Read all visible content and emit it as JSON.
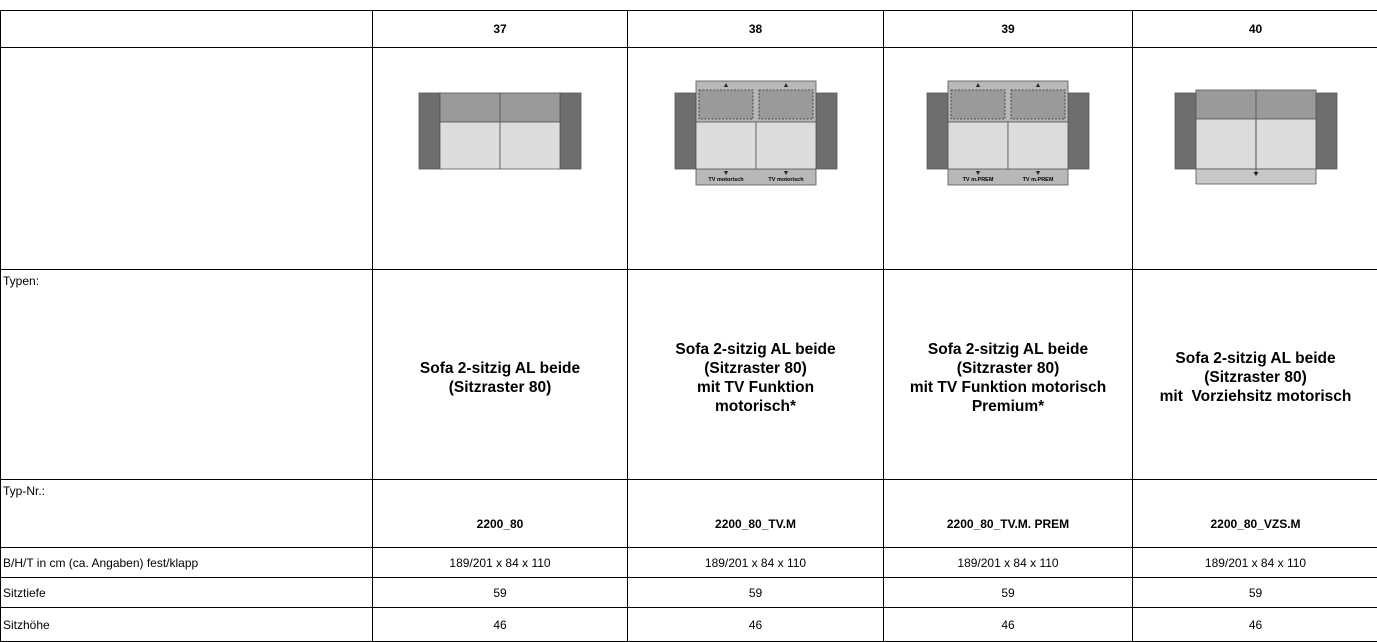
{
  "table": {
    "row_labels": {
      "types": "Typen:",
      "type_no": "Typ-Nr.:",
      "dimensions": "B/H/T in cm (ca. Angaben) fest/klapp",
      "seat_depth": "Sitztiefe",
      "seat_height": "Sitzhöhe"
    },
    "columns": [
      {
        "number": "37",
        "type_lines": [
          "Sofa 2-sitzig AL beide",
          "(Sitzraster 80)"
        ],
        "type_no": "2200_80",
        "dimensions": "189/201 x 84 x 110",
        "seat_depth": 59,
        "seat_height": 46
      },
      {
        "number": "38",
        "diagram_labels": [
          "TV motorisch",
          "TV motorisch"
        ],
        "type_lines": [
          "Sofa 2-sitzig AL beide",
          "(Sitzraster 80)",
          "mit TV Funktion",
          "motorisch*"
        ],
        "type_no": "2200_80_TV.M",
        "dimensions": "189/201 x 84 x 110",
        "seat_depth": 59,
        "seat_height": 46
      },
      {
        "number": "39",
        "diagram_labels": [
          "TV m.PREM",
          "TV m.PREM"
        ],
        "type_lines": [
          "Sofa 2-sitzig AL beide",
          "(Sitzraster 80)",
          "mit TV Funktion motorisch",
          "Premium*"
        ],
        "type_no": "2200_80_TV.M. PREM",
        "dimensions": "189/201 x 84 x 110",
        "seat_depth": 59,
        "seat_height": 46
      },
      {
        "number": "40",
        "type_lines": [
          "Sofa 2-sitzig AL beide",
          "(Sitzraster 80)",
          "mit  Vorziehsitz motorisch"
        ],
        "type_no": "2200_80_VZS.M",
        "dimensions": "189/201 x 84 x 110",
        "seat_depth": 59,
        "seat_height": 46
      }
    ]
  }
}
